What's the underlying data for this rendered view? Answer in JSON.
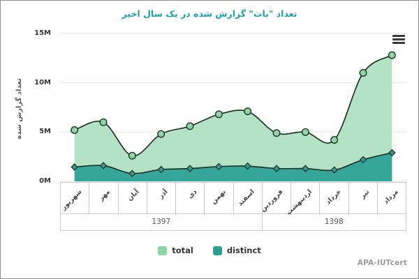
{
  "title": "تعداد \"بات\" گزارش شده در یک سال اخیر",
  "y_axis_title": "تعداد گزارش شده",
  "watermark": "APA-IUTcert",
  "menu_icon": "hamburger-export-menu",
  "chart_data": {
    "type": "area",
    "title": "تعداد \"بات\" گزارش شده در یک سال اخیر",
    "xlabel": "",
    "ylabel": "تعداد گزارش شده",
    "categories": [
      "شهریور",
      "مهر",
      "آبان",
      "آذر",
      "دی",
      "بهمن",
      "اسفند",
      "فروردین",
      "اردیبهشت",
      "خرداد",
      "تیر",
      "مرداد"
    ],
    "year_groups": [
      {
        "label": "1397",
        "span": 7
      },
      {
        "label": "1398",
        "span": 5
      }
    ],
    "unit": "millions",
    "series": [
      {
        "name": "total",
        "marker": "circle",
        "color": "#8bd6a2",
        "fill": "#b3e3c4",
        "values": [
          5.2,
          6.0,
          2.6,
          4.8,
          5.6,
          6.8,
          7.1,
          4.9,
          5.0,
          4.2,
          11.0,
          12.8
        ]
      },
      {
        "name": "distinct",
        "marker": "diamond",
        "color": "#2f9e92",
        "fill": "#35a79a",
        "values": [
          1.45,
          1.6,
          0.8,
          1.2,
          1.3,
          1.5,
          1.55,
          1.3,
          1.3,
          1.15,
          2.2,
          2.9
        ]
      }
    ],
    "y_ticks": [
      "0M",
      "5M",
      "10M",
      "15M"
    ],
    "ylim": [
      0,
      15
    ],
    "grid": true,
    "legend_position": "bottom",
    "line_color": "#24322a",
    "grid_color": "#e2e2e2",
    "title_color": "#1b9fae"
  }
}
